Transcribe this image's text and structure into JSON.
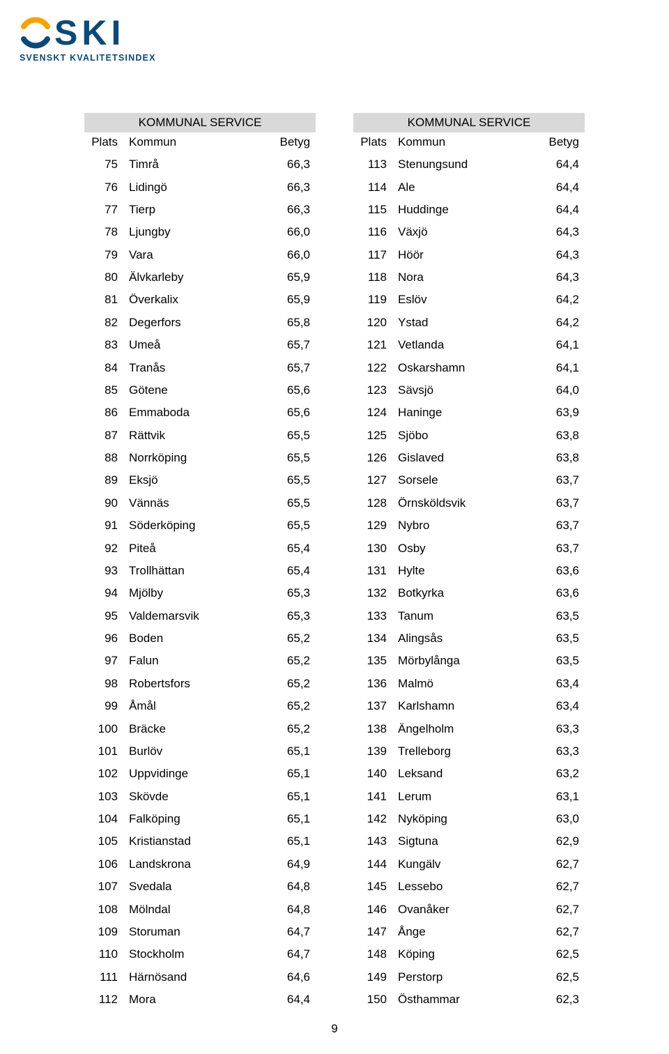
{
  "logo": {
    "text": "SKI",
    "subtitle": "SVENSKT KVALITETSINDEX",
    "colors": {
      "brand": "#0a4a7a",
      "accent": "#f5a300"
    }
  },
  "page_number": "9",
  "tables": {
    "group_header": "KOMMUNAL SERVICE",
    "columns": {
      "plats": "Plats",
      "kommun": "Kommun",
      "betyg": "Betyg"
    },
    "header_bg": "#d9d9d9",
    "font_size_pt": 12,
    "left": [
      {
        "plats": "75",
        "kommun": "Timrå",
        "betyg": "66,3"
      },
      {
        "plats": "76",
        "kommun": "Lidingö",
        "betyg": "66,3"
      },
      {
        "plats": "77",
        "kommun": "Tierp",
        "betyg": "66,3"
      },
      {
        "plats": "78",
        "kommun": "Ljungby",
        "betyg": "66,0"
      },
      {
        "plats": "79",
        "kommun": "Vara",
        "betyg": "66,0"
      },
      {
        "plats": "80",
        "kommun": "Älvkarleby",
        "betyg": "65,9"
      },
      {
        "plats": "81",
        "kommun": "Överkalix",
        "betyg": "65,9"
      },
      {
        "plats": "82",
        "kommun": "Degerfors",
        "betyg": "65,8"
      },
      {
        "plats": "83",
        "kommun": "Umeå",
        "betyg": "65,7"
      },
      {
        "plats": "84",
        "kommun": "Tranås",
        "betyg": "65,7"
      },
      {
        "plats": "85",
        "kommun": "Götene",
        "betyg": "65,6"
      },
      {
        "plats": "86",
        "kommun": "Emmaboda",
        "betyg": "65,6"
      },
      {
        "plats": "87",
        "kommun": "Rättvik",
        "betyg": "65,5"
      },
      {
        "plats": "88",
        "kommun": "Norrköping",
        "betyg": "65,5"
      },
      {
        "plats": "89",
        "kommun": "Eksjö",
        "betyg": "65,5"
      },
      {
        "plats": "90",
        "kommun": "Vännäs",
        "betyg": "65,5"
      },
      {
        "plats": "91",
        "kommun": "Söderköping",
        "betyg": "65,5"
      },
      {
        "plats": "92",
        "kommun": "Piteå",
        "betyg": "65,4"
      },
      {
        "plats": "93",
        "kommun": "Trollhättan",
        "betyg": "65,4"
      },
      {
        "plats": "94",
        "kommun": "Mjölby",
        "betyg": "65,3"
      },
      {
        "plats": "95",
        "kommun": "Valdemarsvik",
        "betyg": "65,3"
      },
      {
        "plats": "96",
        "kommun": "Boden",
        "betyg": "65,2"
      },
      {
        "plats": "97",
        "kommun": "Falun",
        "betyg": "65,2"
      },
      {
        "plats": "98",
        "kommun": "Robertsfors",
        "betyg": "65,2"
      },
      {
        "plats": "99",
        "kommun": "Åmål",
        "betyg": "65,2"
      },
      {
        "plats": "100",
        "kommun": "Bräcke",
        "betyg": "65,2"
      },
      {
        "plats": "101",
        "kommun": "Burlöv",
        "betyg": "65,1"
      },
      {
        "plats": "102",
        "kommun": "Uppvidinge",
        "betyg": "65,1"
      },
      {
        "plats": "103",
        "kommun": "Skövde",
        "betyg": "65,1"
      },
      {
        "plats": "104",
        "kommun": "Falköping",
        "betyg": "65,1"
      },
      {
        "plats": "105",
        "kommun": "Kristianstad",
        "betyg": "65,1"
      },
      {
        "plats": "106",
        "kommun": "Landskrona",
        "betyg": "64,9"
      },
      {
        "plats": "107",
        "kommun": "Svedala",
        "betyg": "64,8"
      },
      {
        "plats": "108",
        "kommun": "Mölndal",
        "betyg": "64,8"
      },
      {
        "plats": "109",
        "kommun": "Storuman",
        "betyg": "64,7"
      },
      {
        "plats": "110",
        "kommun": "Stockholm",
        "betyg": "64,7"
      },
      {
        "plats": "111",
        "kommun": "Härnösand",
        "betyg": "64,6"
      },
      {
        "plats": "112",
        "kommun": "Mora",
        "betyg": "64,4"
      }
    ],
    "right": [
      {
        "plats": "113",
        "kommun": "Stenungsund",
        "betyg": "64,4"
      },
      {
        "plats": "114",
        "kommun": "Ale",
        "betyg": "64,4"
      },
      {
        "plats": "115",
        "kommun": "Huddinge",
        "betyg": "64,4"
      },
      {
        "plats": "116",
        "kommun": "Växjö",
        "betyg": "64,3"
      },
      {
        "plats": "117",
        "kommun": "Höör",
        "betyg": "64,3"
      },
      {
        "plats": "118",
        "kommun": "Nora",
        "betyg": "64,3"
      },
      {
        "plats": "119",
        "kommun": "Eslöv",
        "betyg": "64,2"
      },
      {
        "plats": "120",
        "kommun": "Ystad",
        "betyg": "64,2"
      },
      {
        "plats": "121",
        "kommun": "Vetlanda",
        "betyg": "64,1"
      },
      {
        "plats": "122",
        "kommun": "Oskarshamn",
        "betyg": "64,1"
      },
      {
        "plats": "123",
        "kommun": "Sävsjö",
        "betyg": "64,0"
      },
      {
        "plats": "124",
        "kommun": "Haninge",
        "betyg": "63,9"
      },
      {
        "plats": "125",
        "kommun": "Sjöbo",
        "betyg": "63,8"
      },
      {
        "plats": "126",
        "kommun": "Gislaved",
        "betyg": "63,8"
      },
      {
        "plats": "127",
        "kommun": "Sorsele",
        "betyg": "63,7"
      },
      {
        "plats": "128",
        "kommun": "Örnsköldsvik",
        "betyg": "63,7"
      },
      {
        "plats": "129",
        "kommun": "Nybro",
        "betyg": "63,7"
      },
      {
        "plats": "130",
        "kommun": "Osby",
        "betyg": "63,7"
      },
      {
        "plats": "131",
        "kommun": "Hylte",
        "betyg": "63,6"
      },
      {
        "plats": "132",
        "kommun": "Botkyrka",
        "betyg": "63,6"
      },
      {
        "plats": "133",
        "kommun": "Tanum",
        "betyg": "63,5"
      },
      {
        "plats": "134",
        "kommun": "Alingsås",
        "betyg": "63,5"
      },
      {
        "plats": "135",
        "kommun": "Mörbylånga",
        "betyg": "63,5"
      },
      {
        "plats": "136",
        "kommun": "Malmö",
        "betyg": "63,4"
      },
      {
        "plats": "137",
        "kommun": "Karlshamn",
        "betyg": "63,4"
      },
      {
        "plats": "138",
        "kommun": "Ängelholm",
        "betyg": "63,3"
      },
      {
        "plats": "139",
        "kommun": "Trelleborg",
        "betyg": "63,3"
      },
      {
        "plats": "140",
        "kommun": "Leksand",
        "betyg": "63,2"
      },
      {
        "plats": "141",
        "kommun": "Lerum",
        "betyg": "63,1"
      },
      {
        "plats": "142",
        "kommun": "Nyköping",
        "betyg": "63,0"
      },
      {
        "plats": "143",
        "kommun": "Sigtuna",
        "betyg": "62,9"
      },
      {
        "plats": "144",
        "kommun": "Kungälv",
        "betyg": "62,7"
      },
      {
        "plats": "145",
        "kommun": "Lessebo",
        "betyg": "62,7"
      },
      {
        "plats": "146",
        "kommun": "Ovanåker",
        "betyg": "62,7"
      },
      {
        "plats": "147",
        "kommun": "Ånge",
        "betyg": "62,7"
      },
      {
        "plats": "148",
        "kommun": "Köping",
        "betyg": "62,5"
      },
      {
        "plats": "149",
        "kommun": "Perstorp",
        "betyg": "62,5"
      },
      {
        "plats": "150",
        "kommun": "Östhammar",
        "betyg": "62,3"
      }
    ]
  }
}
